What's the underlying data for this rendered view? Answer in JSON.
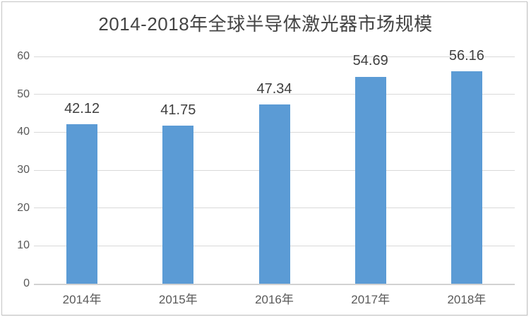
{
  "chart_data": {
    "type": "bar",
    "title": "2014-2018年全球半导体激光器市场规模",
    "categories": [
      "2014年",
      "2015年",
      "2016年",
      "2017年",
      "2018年"
    ],
    "values": [
      42.12,
      41.75,
      47.34,
      54.69,
      56.16
    ],
    "value_labels": [
      "42.12",
      "41.75",
      "47.34",
      "54.69",
      "56.16"
    ],
    "xlabel": "",
    "ylabel": "",
    "ylim": [
      0,
      60
    ],
    "yticks": [
      0,
      10,
      20,
      30,
      40,
      50,
      60
    ],
    "grid": true,
    "legend_position": "none"
  },
  "colors": {
    "bar": "#5b9bd5",
    "gridline": "#d9d9d9",
    "axis_line": "#d2d2d2",
    "title_text": "#444444",
    "value_label_text": "#3f3f3f",
    "axis_label_text": "#595959",
    "frame_border": "#c5c5c5",
    "background": "#ffffff"
  }
}
